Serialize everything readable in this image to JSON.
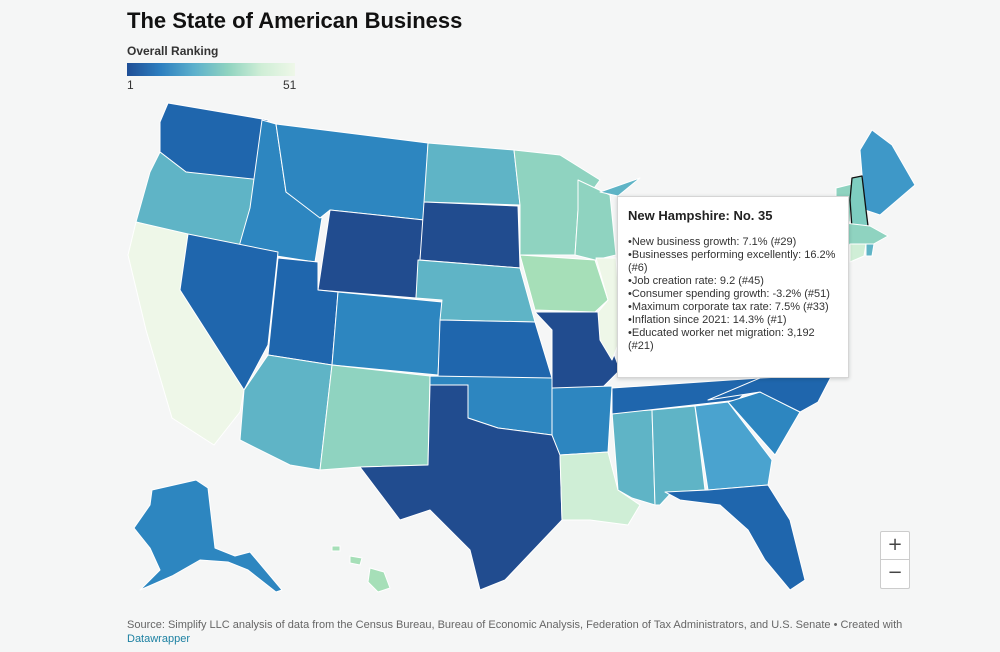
{
  "header": {
    "title": "The State of American Business",
    "legend_title": "Overall Ranking",
    "legend_min": "1",
    "legend_max": "51"
  },
  "map": {
    "highlighted_state": "New Hampshire",
    "color_scale": [
      "#1f4e96",
      "#2d7fc0",
      "#5cb0cc",
      "#8fd3c0",
      "#cfeed6",
      "#eef7e8"
    ]
  },
  "tooltip": {
    "title": "New Hampshire: No. 35",
    "lines": [
      "•New business growth: 7.1% (#29)",
      "•Businesses performing excellently: 16.2% (#6)",
      "•Job creation rate: 9.2 (#45)",
      "•Consumer spending growth: -3.2% (#51)",
      "•Maximum corporate tax rate: 7.5% (#33)",
      "•Inflation since 2021: 14.3% (#1)",
      "•Educated worker net migration: 3,192 (#21)"
    ]
  },
  "controls": {
    "zoom_in": "+",
    "zoom_out": "−"
  },
  "footer": {
    "source": "Source: Simplify LLC analysis of data from the Census Bureau, Bureau of Economic Analysis, Federation of Tax Administrators, and U.S. Senate • Created with",
    "link": "Datawrapper"
  }
}
